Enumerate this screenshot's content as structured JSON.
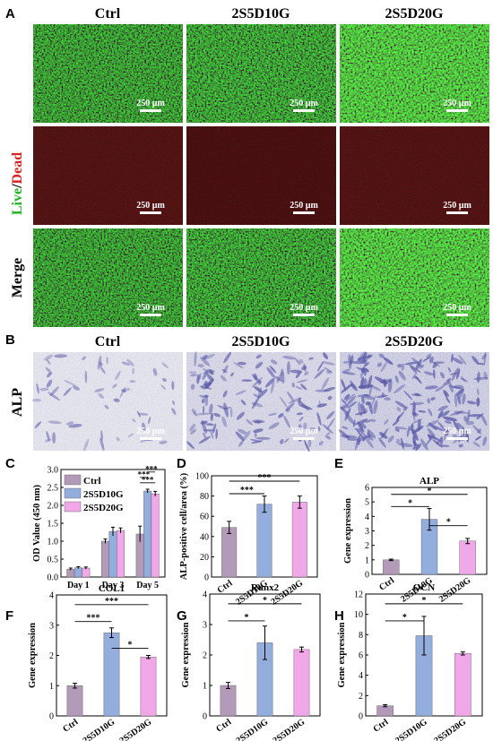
{
  "colors": {
    "live": "#22b422",
    "dead": "#dd2222",
    "ctrl": "#b29ab8",
    "d10": "#93aedd",
    "d20": "#f0a8e8",
    "fluor_green": "#1f8f18",
    "fluor_red_bg": "#1d0606",
    "alp_bg": "#e6e6ec",
    "alp_stain": "#5a5aa8"
  },
  "panelA": {
    "letter": "A",
    "columns": [
      "Ctrl",
      "2S5D10G",
      "2S5D20G"
    ],
    "row_label_live": "Live",
    "row_label_slash": "/",
    "row_label_dead": "Dead",
    "row_label_merge": "Merge",
    "scale_bar": "250 µm"
  },
  "panelB": {
    "letter": "B",
    "columns": [
      "Ctrl",
      "2S5D10G",
      "2S5D20G"
    ],
    "row_label": "ALP",
    "scale_bar": "250 µm"
  },
  "chart_data": [
    {
      "panel": "C",
      "type": "bar",
      "ylabel": "OD Value (450 nm)",
      "categories": [
        "Day 1",
        "Day 3",
        "Day 5"
      ],
      "series": [
        {
          "name": "Ctrl",
          "values": [
            0.22,
            1.0,
            1.2
          ],
          "errors": [
            0.03,
            0.06,
            0.22
          ]
        },
        {
          "name": "2S5D10G",
          "values": [
            0.26,
            1.27,
            2.4
          ],
          "errors": [
            0.03,
            0.12,
            0.05
          ]
        },
        {
          "name": "2S5D20G",
          "values": [
            0.25,
            1.3,
            2.32
          ],
          "errors": [
            0.03,
            0.07,
            0.07
          ]
        }
      ],
      "ylim": [
        0,
        3.0
      ],
      "yticks": [
        0.0,
        0.5,
        1.0,
        1.5,
        2.0,
        2.5,
        3.0
      ],
      "ytick_labels": [
        "0.0",
        "0.5",
        "1.0",
        "1.5",
        "2.0",
        "2.5",
        "3.0"
      ],
      "legend_position": "top-left",
      "significance": [
        "***",
        "***",
        "***"
      ]
    },
    {
      "panel": "D",
      "type": "bar",
      "ylabel": "ALP-positive cell/area (%)",
      "categories": [
        "Ctrl",
        "2S5D10G",
        "2S5D20G"
      ],
      "values": [
        49,
        72,
        74
      ],
      "errors": [
        6,
        8,
        6
      ],
      "ylim": [
        0,
        100
      ],
      "yticks": [
        0,
        20,
        40,
        60,
        80,
        100
      ],
      "ytick_labels": [
        "0",
        "20",
        "40",
        "60",
        "80",
        "100"
      ],
      "significance": [
        {
          "from": 0,
          "to": 1,
          "label": "***"
        },
        {
          "from": 0,
          "to": 2,
          "label": "***"
        }
      ]
    },
    {
      "panel": "E",
      "type": "bar",
      "title": "ALP",
      "ylabel": "Gene expression",
      "categories": [
        "Ctrl",
        "2S5D10G",
        "2S5D20G"
      ],
      "values": [
        1.0,
        3.8,
        2.3
      ],
      "errors": [
        0.05,
        0.75,
        0.18
      ],
      "ylim": [
        0,
        6
      ],
      "yticks": [
        0,
        1,
        2,
        3,
        4,
        5,
        6
      ],
      "ytick_labels": [
        "0",
        "1",
        "2",
        "3",
        "4",
        "5",
        "6"
      ],
      "significance": [
        {
          "from": 0,
          "to": 1,
          "label": "*"
        },
        {
          "from": 0,
          "to": 2,
          "label": "*"
        },
        {
          "from": 1,
          "to": 2,
          "label": "*"
        }
      ]
    },
    {
      "panel": "F",
      "type": "bar",
      "title": "COL1",
      "ylabel": "Gene expression",
      "categories": [
        "Ctrl",
        "2S5D10G",
        "2S5D20G"
      ],
      "values": [
        1.0,
        2.75,
        1.95
      ],
      "errors": [
        0.08,
        0.16,
        0.05
      ],
      "ylim": [
        0,
        4
      ],
      "yticks": [
        0,
        1,
        2,
        3,
        4
      ],
      "ytick_labels": [
        "0",
        "1",
        "2",
        "3",
        "4"
      ],
      "significance": [
        {
          "from": 0,
          "to": 1,
          "label": "***"
        },
        {
          "from": 0,
          "to": 2,
          "label": "***"
        },
        {
          "from": 1,
          "to": 2,
          "label": "*"
        }
      ]
    },
    {
      "panel": "G",
      "type": "bar",
      "title": "Runx2",
      "ylabel": "Gene expression",
      "categories": [
        "Ctrl",
        "2S5D10G",
        "2S5D20G"
      ],
      "values": [
        1.0,
        2.4,
        2.18
      ],
      "errors": [
        0.1,
        0.55,
        0.08
      ],
      "ylim": [
        0,
        4
      ],
      "yticks": [
        0,
        1,
        2,
        3,
        4
      ],
      "ytick_labels": [
        "0",
        "1",
        "2",
        "3",
        "4"
      ],
      "significance": [
        {
          "from": 0,
          "to": 1,
          "label": "*"
        },
        {
          "from": 0,
          "to": 2,
          "label": "*"
        }
      ]
    },
    {
      "panel": "H",
      "type": "bar",
      "title": "OCN",
      "ylabel": "Gene expression",
      "categories": [
        "Ctrl",
        "2S5D10G",
        "2S5D20G"
      ],
      "values": [
        1.0,
        7.9,
        6.15
      ],
      "errors": [
        0.1,
        1.9,
        0.15
      ],
      "ylim": [
        0,
        12
      ],
      "yticks": [
        0,
        2,
        4,
        6,
        8,
        10,
        12
      ],
      "ytick_labels": [
        "0",
        "2",
        "4",
        "6",
        "8",
        "10",
        "12"
      ],
      "significance": [
        {
          "from": 0,
          "to": 1,
          "label": "*"
        },
        {
          "from": 0,
          "to": 2,
          "label": "*"
        }
      ]
    }
  ]
}
